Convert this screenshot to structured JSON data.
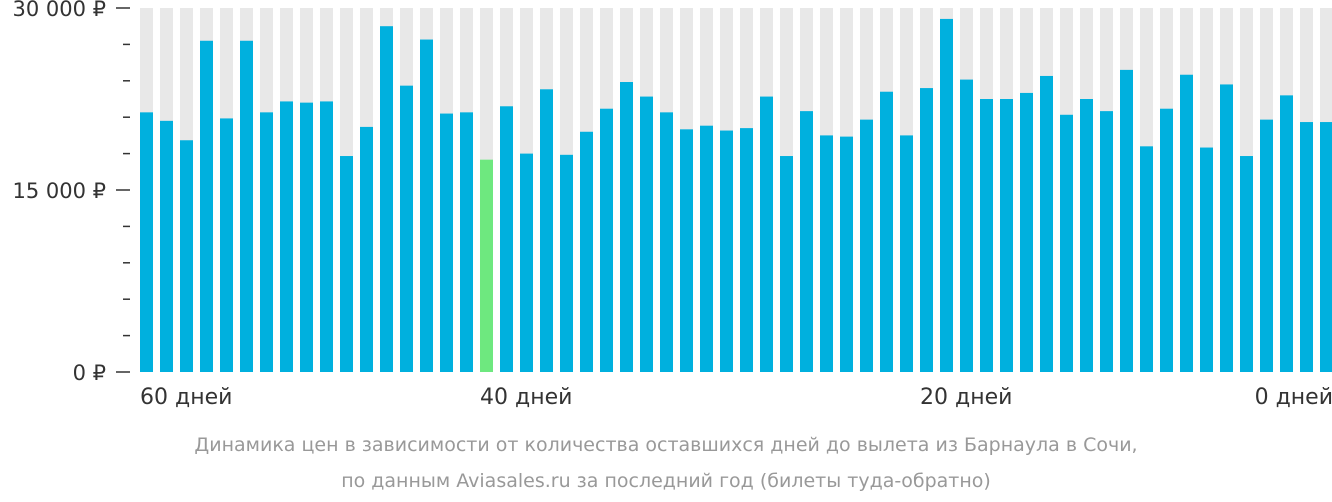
{
  "chart_data": {
    "type": "bar",
    "y_ticks": [
      "30 000 ₽",
      "15 000 ₽",
      "0 ₽"
    ],
    "y_tick_values": [
      30000,
      15000,
      0
    ],
    "ylim": [
      0,
      30000
    ],
    "x_labels": [
      {
        "text": "60 дней",
        "index": 0
      },
      {
        "text": "40 дней",
        "index": 17
      },
      {
        "text": "20 дней",
        "index": 39
      },
      {
        "text": "0 дней",
        "index": 59
      }
    ],
    "values": [
      21400,
      20700,
      19100,
      27300,
      20900,
      27300,
      21400,
      22300,
      22200,
      22300,
      17800,
      20200,
      28500,
      23600,
      27400,
      21300,
      21400,
      17500,
      21900,
      18000,
      23300,
      17900,
      19800,
      21700,
      23900,
      22700,
      21400,
      20000,
      20300,
      19900,
      20100,
      22700,
      17800,
      21500,
      19500,
      19400,
      20800,
      23100,
      19500,
      23400,
      29100,
      24100,
      22500,
      22500,
      23000,
      24400,
      21200,
      22500,
      21500,
      24900,
      18600,
      21700,
      24500,
      18500,
      23700,
      17800,
      20800,
      22800,
      20600,
      20600
    ],
    "highlight_index": 17,
    "colors": {
      "bar": "#00b0de",
      "highlight": "#6ee87f",
      "background_bar": "#e8e8e8",
      "axis": "#333333",
      "caption": "#999999"
    },
    "grid": false
  },
  "caption": {
    "line1": "Динамика цен в зависимости от количества оставшихся дней до вылета из Барнаула в Сочи,",
    "line2": "по данным Aviasales.ru за последний год (билеты туда-обратно)"
  }
}
